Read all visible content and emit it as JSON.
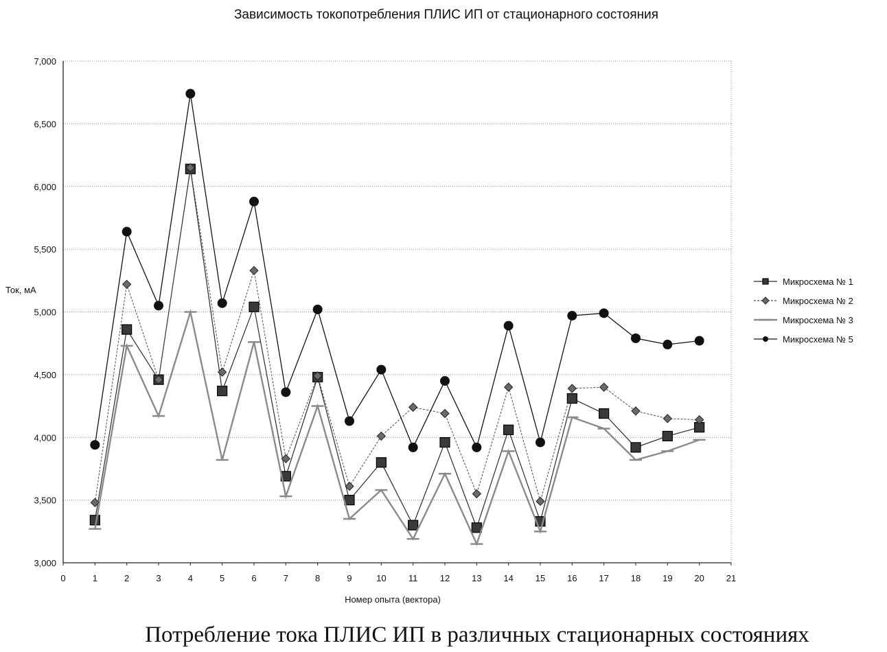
{
  "chart_data": {
    "type": "line",
    "title": "Зависимость токопотребления ПЛИС ИП от стационарного состояния",
    "xlabel": "Номер опыта (вектора)",
    "ylabel": "Ток, мА",
    "caption": "Потребление тока ПЛИС ИП в различных стационарных состояниях",
    "xlim": [
      0,
      21
    ],
    "ylim": [
      3000,
      7000
    ],
    "x_ticks": [
      "0",
      "1",
      "2",
      "3",
      "4",
      "5",
      "6",
      "7",
      "8",
      "9",
      "10",
      "11",
      "12",
      "13",
      "14",
      "15",
      "16",
      "17",
      "18",
      "19",
      "20",
      "21"
    ],
    "y_ticks": [
      "3,000",
      "3,500",
      "4,000",
      "4,500",
      "5,000",
      "5,500",
      "6,000",
      "6,500",
      "7,000"
    ],
    "grid": "horizontal",
    "legend_position": "right",
    "x": [
      1,
      2,
      3,
      4,
      5,
      6,
      7,
      8,
      9,
      10,
      11,
      12,
      13,
      14,
      15,
      16,
      17,
      18,
      19,
      20
    ],
    "series": [
      {
        "name": "Микросхема № 1",
        "marker": "square",
        "color": "#2a2a2a",
        "values": [
          3340,
          4860,
          4460,
          6140,
          4370,
          5040,
          3690,
          4480,
          3500,
          3800,
          3300,
          3960,
          3280,
          4060,
          3330,
          4310,
          4190,
          3920,
          4010,
          4080
        ]
      },
      {
        "name": "Микросхема № 2",
        "marker": "diamond",
        "color": "#4a4a4a",
        "values": [
          3480,
          5220,
          4460,
          6150,
          4520,
          5330,
          3830,
          4490,
          3610,
          4010,
          4240,
          4190,
          3550,
          4400,
          3490,
          4390,
          4400,
          4210,
          4150,
          4140
        ]
      },
      {
        "name": "Микросхема № 3",
        "marker": "dash",
        "color": "#8a8a8a",
        "values": [
          3270,
          4730,
          4170,
          5000,
          3820,
          4760,
          3530,
          4250,
          3350,
          3580,
          3190,
          3710,
          3150,
          3890,
          3250,
          4160,
          4070,
          3820,
          3890,
          3980
        ]
      },
      {
        "name": "Микросхема № 5",
        "marker": "circle",
        "color": "#111111",
        "values": [
          3940,
          5640,
          5050,
          6740,
          5070,
          5880,
          4360,
          5020,
          4130,
          4540,
          3920,
          4450,
          3920,
          4890,
          3960,
          4970,
          4990,
          4790,
          4740,
          4770
        ]
      }
    ]
  }
}
